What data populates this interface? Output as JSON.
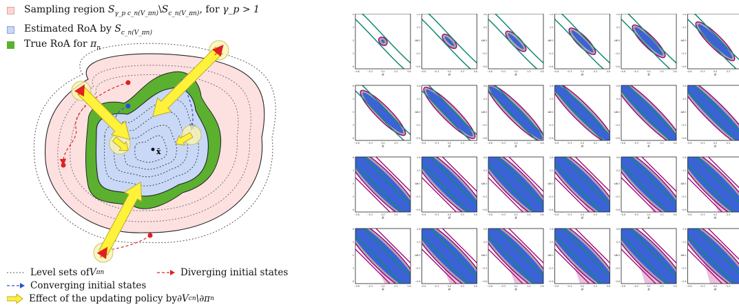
{
  "legend": {
    "sampling_prefix": "Sampling region ",
    "sampling_set_a": "S",
    "sampling_set_a_sub": "γ_p c_n(V_πn)",
    "sampling_minus": "\\",
    "sampling_set_b": "S",
    "sampling_set_b_sub": "c_n(V_πn)",
    "sampling_suffix": ", for ",
    "sampling_cond": "γ_p > 1",
    "estimated_prefix": "Estimated RoA by ",
    "estimated_set": "S",
    "estimated_sub": "c_n(V_πn)",
    "true_prefix": "True RoA for ",
    "true_pi": "π",
    "true_pi_sub": "n",
    "colors": {
      "sampling": "#fbd6d6",
      "estimated": "#c8d8f6",
      "true": "#5bb030"
    }
  },
  "diagram": {
    "equilibrium_label": "x̄",
    "colors": {
      "outer_fill": "#fde0e0",
      "green": "#5bb030",
      "blue": "#c8d8f6",
      "arrow": "#fff23a",
      "diverging": "#e02020",
      "converging": "#2850d0"
    }
  },
  "footer": {
    "level_sets": "Level sets of ",
    "level_sets_math": "V",
    "level_sets_sub": "πn",
    "diverging": "Diverging initial states",
    "converging": "Converging initial states",
    "effect": "Effect of the updating policy by ",
    "effect_math": "∂V",
    "effect_sub": "cn",
    "effect_rest": "\\∂π",
    "effect_rest_sub": "n"
  },
  "grid": {
    "rows": 4,
    "cols": 6,
    "y_axis_label": "ω",
    "x_axis_label": "θ",
    "tick_labels": [
      "−0.6",
      "−0.3",
      "0.0",
      "0.3",
      "0.6"
    ],
    "colors": {
      "boundary": "#138a72",
      "sample": "#a0087a",
      "estimate": "#3b62d6",
      "gray": "#a8a8a8",
      "pink": "#e8b9d8"
    }
  }
}
